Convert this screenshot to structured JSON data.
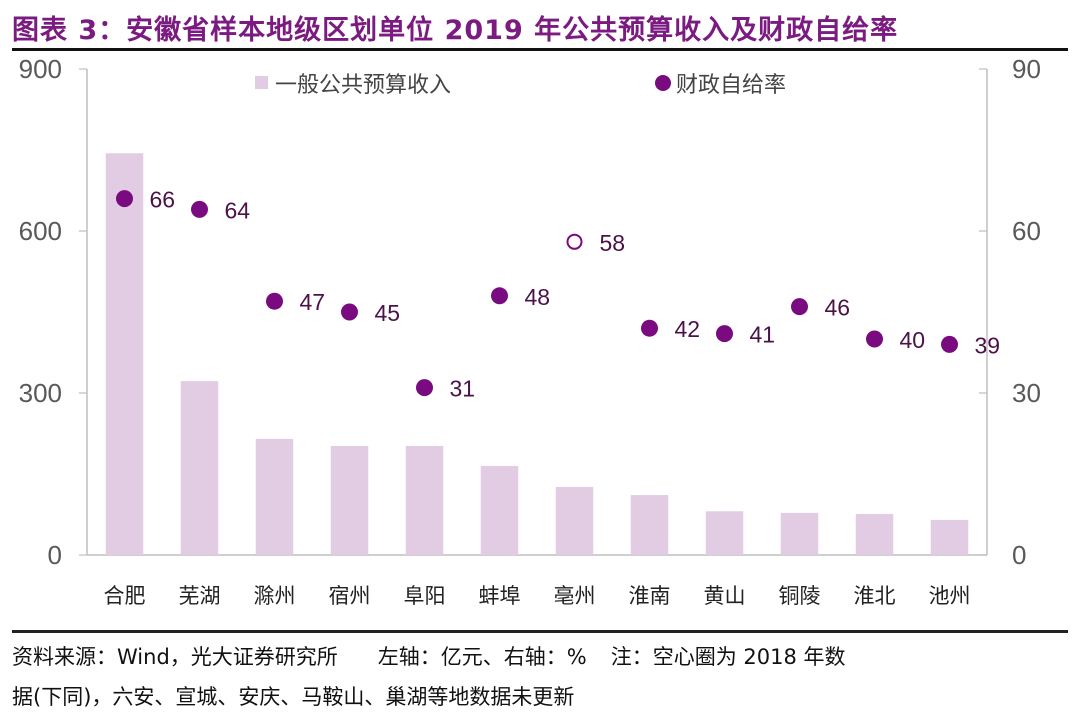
{
  "header": {
    "title": "图表 3：安徽省样本地级区划单位 2019 年公共预算收入及财政自给率"
  },
  "footer": {
    "source": "资料来源：Wind，光大证券研究所",
    "axes_note": "左轴：亿元、右轴：%",
    "note_line1": "注：空心圈为 2018 年数",
    "note_line2": "据(下同)，六安、宣城、安庆、马鞍山、巢湖等地数据未更新"
  },
  "colors": {
    "title": "#7b1a80",
    "bar": "#e2cce4",
    "dot": "#7a0a7f",
    "label": "#4a1248",
    "axis": "#bfbfbf",
    "tick_text": "#595959"
  },
  "chart_data": {
    "type": "bar",
    "title": "安徽省样本地级区划单位 2019 年公共预算收入及财政自给率",
    "categories": [
      "合肥",
      "芜湖",
      "滁州",
      "宿州",
      "阜阳",
      "蚌埠",
      "亳州",
      "淮南",
      "黄山",
      "铜陵",
      "淮北",
      "池州"
    ],
    "series": [
      {
        "name": "一般公共预算收入",
        "type": "bar",
        "axis": "left",
        "values": [
          744,
          322,
          215,
          202,
          202,
          165,
          126,
          111,
          81,
          78,
          76,
          65
        ]
      },
      {
        "name": "财政自给率",
        "type": "scatter",
        "axis": "right",
        "values": [
          66,
          64,
          47,
          45,
          31,
          48,
          58,
          42,
          41,
          46,
          40,
          39
        ],
        "labels": [
          "66",
          "64",
          "47",
          "45",
          "31",
          "48",
          "58",
          "42",
          "41",
          "46",
          "40",
          "39"
        ],
        "hollow": [
          false,
          false,
          false,
          false,
          false,
          false,
          true,
          false,
          false,
          false,
          false,
          false
        ]
      }
    ],
    "left_axis": {
      "label": "亿元",
      "range": [
        0,
        900
      ],
      "ticks": [
        0,
        300,
        600,
        900
      ],
      "tick_labels": [
        "0",
        "300",
        "600",
        "900"
      ]
    },
    "right_axis": {
      "label": "%",
      "range": [
        0,
        90
      ],
      "ticks": [
        0,
        30,
        60,
        90
      ],
      "tick_labels": [
        "0",
        "30",
        "60",
        "90"
      ]
    },
    "grid": false,
    "legend": {
      "placement": "top",
      "entries": [
        "一般公共预算收入",
        "财政自给率"
      ]
    }
  }
}
